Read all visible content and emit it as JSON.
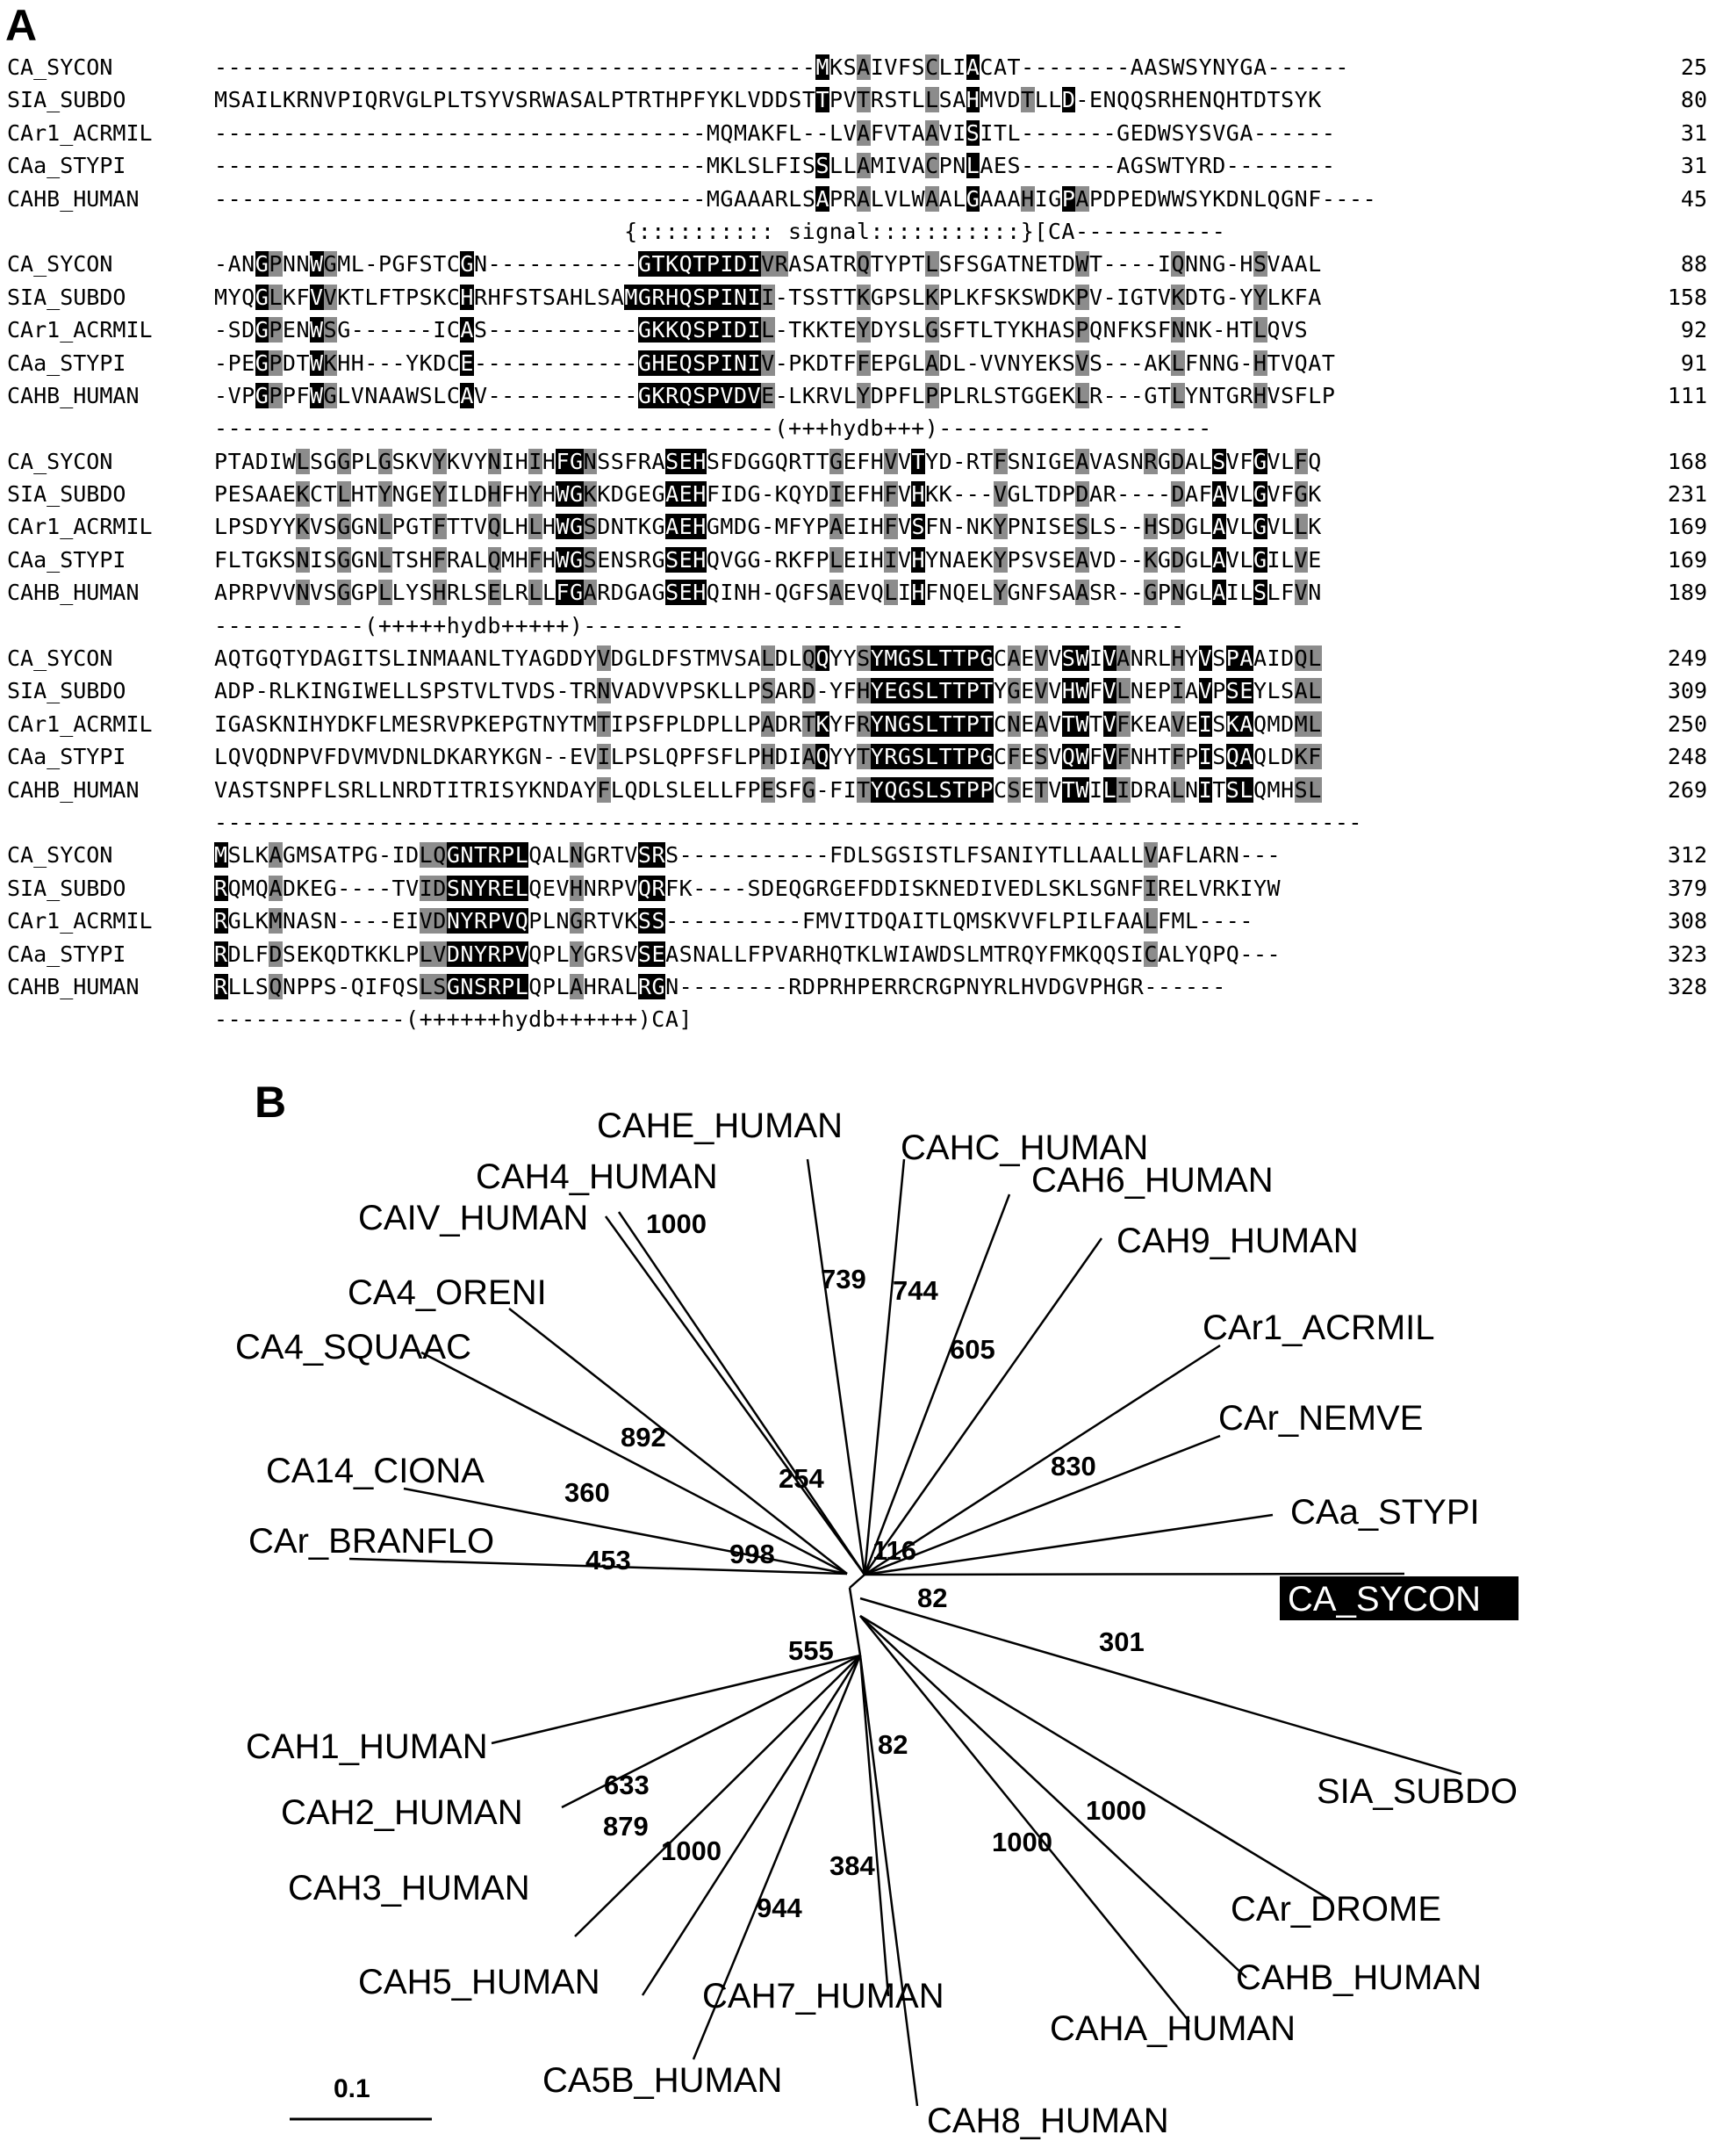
{
  "panels": {
    "a": "A",
    "b": "B"
  },
  "alignment": {
    "blocks": [
      {
        "rows": [
          {
            "name": "CA_SYCON",
            "seq": "--------------------------------------------MKSAIVFSCLIACAT--------AASWSYNYGA------",
            "end": "25"
          },
          {
            "name": "SIA_SUBDO",
            "seq": "MSAILKRNVPIQRVGLPLTSYVSRWASALPTRTHPFYKLVDDSTTPVTRSTLLSAHMVDTLLD-ENQQSRHENQHTDTSYK",
            "end": "80"
          },
          {
            "name": "CAr1_ACRMIL",
            "seq": "------------------------------------MQMAKFL--LVAFVTAAVISITL-------GEDWSYSVGA------",
            "end": "31"
          },
          {
            "name": "CAa_STYPI",
            "seq": "------------------------------------MKLSLFISSLLAMIVACPNLAES-------AGSWTYRD--------",
            "end": "31"
          },
          {
            "name": "CAHB_HUMAN",
            "seq": "------------------------------------MGAAARLSAPRALVLWAALGAAAHIGPAPDPEDWWSYKDNLQGNF----",
            "end": "45"
          }
        ],
        "annotation": "                              {:::::::::: signal:::::::::::}[CA-----------"
      },
      {
        "rows": [
          {
            "name": "CA_SYCON",
            "seq": "-ANGPNNWGML-PGFSTCGN-----------GTKQTPIDIVRASATRQTYPTLSFSGATNETDWT----IQNNG-HSVAAL",
            "end": "88"
          },
          {
            "name": "SIA_SUBDO",
            "seq": "MYQGLKFVVKTLFTPSKCHRHFSTSAHLSAMGRHQSPINII-TSSTTKGPSLKPLKFSKSWDKPV-IGTVKDTG-YYLKFA",
            "end": "158"
          },
          {
            "name": "CAr1_ACRMIL",
            "seq": "-SDGPENWSG------ICAS-----------GKKQSPIDIL-TKKTEYDYSLGSFTLTYKHASPQNFKSFNNK-HTLQVS",
            "end": "92"
          },
          {
            "name": "CAa_STYPI",
            "seq": "-PEGPDTWKHH---YKDCE------------GHEQSPINIV-PKDTFFEPGLADL-VVNYEKSVS---AKLFNNG-HTVQAT",
            "end": "91"
          },
          {
            "name": "CAHB_HUMAN",
            "seq": "-VPGPPFWGLVNAAWSLCAV-----------GKRQSPVDVE-LKRVLYDPFLPPLRLSTGGEKLR---GTLYNTGRHVSFLP",
            "end": "111"
          }
        ],
        "annotation": "-----------------------------------------(+++hydb+++)--------------------"
      },
      {
        "rows": [
          {
            "name": "CA_SYCON",
            "seq": "PTADIWLSGGPLGSKVYKVYNIHIHFGNSSFRASEHSFDGGQRTTGEFHVVTYD-RTFSNIGEAVASNRGDALSVFGVLFQ",
            "end": "168"
          },
          {
            "name": "SIA_SUBDO",
            "seq": "PESAAEKCTLHTYNGEYILDHFHYHWGKKDGEGAEHFIDG-KQYDIEFHFVHKK---VGLTDPDAR----DAFAVLGVFGK",
            "end": "231"
          },
          {
            "name": "CAr1_ACRMIL",
            "seq": "LPSDYYKVSGGNLPGTFTTVQLHLHWGSDNTKGAEHGMDG-MFYPAEIHFVSFN-NKYPNISESLS--HSDGLAVLGVLLK",
            "end": "169"
          },
          {
            "name": "CAa_STYPI",
            "seq": "FLTGKSNISGGNLTSHFRALQMHFHWGSENSRGSEHQVGG-RKFPLEIHIVHYNAEKYPSVSEAVD--KGDGLAVLGILVE",
            "end": "169"
          },
          {
            "name": "CAHB_HUMAN",
            "seq": "APRPVVNVSGGPLLYSHRLSELRLLFGARDGAGSEHQINH-QGFSAEVQLIHFNQELYGNFSAASR--GPNGLAILSLFVN",
            "end": "189"
          }
        ],
        "annotation": "-----------(+++++hydb+++++)--------------------------------------------"
      },
      {
        "rows": [
          {
            "name": "CA_SYCON",
            "seq": "AQTGQTYDAGITSLINMAANLTYAGDDYVDGLDFSTMVSALDLQQYYSYMGSLTTPGCAEVVSWIVANRLHYVSPAAIDQL",
            "end": "249"
          },
          {
            "name": "SIA_SUBDO",
            "seq": "ADP-RLKINGIWELLSPSTVLTVDS-TRNVADVVPSKLLPSARD-YFHYEGSLTTPTYGEVVHWFVLNEPIAVPSEYLSAL",
            "end": "309"
          },
          {
            "name": "CAr1_ACRMIL",
            "seq": "IGASKNIHYDKFLMESRVPKEPGTNYTMTIPSFPLDPLLPADRTKYFRYNGSLTTPTCNEAVTWTVFKEAVEISKAQMDML",
            "end": "250"
          },
          {
            "name": "CAa_STYPI",
            "seq": "LQVQDNPVFDVMVDNLDKARYKGN--EVILPSLQPFSFLPHDIAQYYTYRGSLTTPGCFESVQWFVFNHTFPISQAQLDKF",
            "end": "248"
          },
          {
            "name": "CAHB_HUMAN",
            "seq": "VASTSNPFLSRLLNRDTITRISYKNDAYFLQDLSLELLFPESFG-FITYQGSLSTPPCSETVTWILIDRALNITSLQMHSL",
            "end": "269"
          }
        ],
        "annotation": "------------------------------------------------------------------------------------"
      },
      {
        "rows": [
          {
            "name": "CA_SYCON",
            "seq": "MSLKAGMSATPG-IDLQGNTRPLQALNGRTVSRS-----------FDLSGSISTLFSANIYTLLAALLVAFLARN---",
            "end": "312"
          },
          {
            "name": "SIA_SUBDO",
            "seq": "RQMQADKEG----TVIDSNYRELQEVHNRPVQRFK----SDEQGRGEFDDISKNEDIVEDLSKLSGNFIRELVRKIYW",
            "end": "379"
          },
          {
            "name": "CAr1_ACRMIL",
            "seq": "RGLKMNASN----EIVDNYRPVQPLNGRTVKSS----------FMVITDQAITLQMSKVVFLPILFAALFML----",
            "end": "308"
          },
          {
            "name": "CAa_STYPI",
            "seq": "RDLFDSEKQDTKKLPLVDNYRPVQPLYGRSVSEASNALLFPVARHQTKLWIAWDSLMTRQYFMKQQSICALYQPQ---",
            "end": "323"
          },
          {
            "name": "CAHB_HUMAN",
            "seq": "RLLSQNPPS-QIFQSLSGNSRPLQPLAHRALRGN--------RDPRHPERRCRGPNYRLHVDGVPHGR------",
            "end": "328"
          }
        ],
        "annotation": "--------------(++++++hydb++++++)CA]"
      }
    ]
  },
  "tree": {
    "leaves": {
      "cahe": "CAHE_HUMAN",
      "cahc": "CAHC_HUMAN",
      "cah6": "CAH6_HUMAN",
      "cah4": "CAH4_HUMAN",
      "cah9": "CAH9_HUMAN",
      "caiv": "CAIV_HUMAN",
      "ca4oreni": "CA4_ORENI",
      "car1acrmil": "CAr1_ACRMIL",
      "ca4squaac": "CA4_SQUAAC",
      "carnemve": "CAr_NEMVE",
      "ca14ciona": "CA14_CIONA",
      "castypi": "CAa_STYPI",
      "carbranflo": "CAr_BRANFLO",
      "casycon": "CA_SYCON",
      "siasubdo": "SIA_SUBDO",
      "cah1": "CAH1_HUMAN",
      "cah2": "CAH2_HUMAN",
      "cah3": "CAH3_HUMAN",
      "cardrome": "CAr_DROME",
      "cahb": "CAHB_HUMAN",
      "cah5": "CAH5_HUMAN",
      "cah7": "CAH7_HUMAN",
      "caha": "CAHA_HUMAN",
      "ca5b": "CA5B_HUMAN",
      "cah8": "CAH8_HUMAN"
    },
    "bootstraps": {
      "b1000a": "1000",
      "b739": "739",
      "b744": "744",
      "b605": "605",
      "b892": "892",
      "b254": "254",
      "b830": "830",
      "b360": "360",
      "b998": "998",
      "b116": "116",
      "b453": "453",
      "b82a": "82",
      "b301": "301",
      "b555": "555",
      "b82b": "82",
      "b633": "633",
      "b1000b": "1000",
      "b879": "879",
      "b1000c": "1000",
      "b1000d": "1000",
      "b944": "944",
      "b384": "384"
    },
    "scale_label": "0.1",
    "highlight_colors": {
      "foreground": "#ffffff",
      "background": "#000000"
    }
  }
}
